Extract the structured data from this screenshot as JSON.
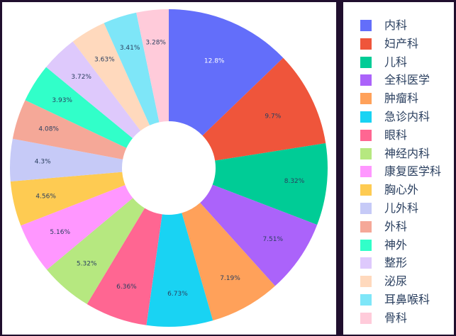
{
  "chart_data": {
    "type": "pie",
    "hole": true,
    "title": "",
    "legend_position": "right",
    "slices": [
      {
        "label": "内科",
        "value": 12.8,
        "text": "12.8%",
        "color": "#636efa",
        "text_color": "#ffffff"
      },
      {
        "label": "妇产科",
        "value": 9.7,
        "text": "9.7%",
        "color": "#ef553b",
        "text_color": "#2a3f5f"
      },
      {
        "label": "儿科",
        "value": 8.32,
        "text": "8.32%",
        "color": "#00cc96",
        "text_color": "#2a3f5f"
      },
      {
        "label": "全科医学",
        "value": 7.51,
        "text": "7.51%",
        "color": "#ab63fa",
        "text_color": "#2a3f5f"
      },
      {
        "label": "肿瘤科",
        "value": 7.19,
        "text": "7.19%",
        "color": "#ffa15a",
        "text_color": "#2a3f5f"
      },
      {
        "label": "急诊内科",
        "value": 6.73,
        "text": "6.73%",
        "color": "#19d3f3",
        "text_color": "#2a3f5f"
      },
      {
        "label": "眼科",
        "value": 6.36,
        "text": "6.36%",
        "color": "#ff6692",
        "text_color": "#2a3f5f"
      },
      {
        "label": "神经内科",
        "value": 5.32,
        "text": "5.32%",
        "color": "#b6e880",
        "text_color": "#2a3f5f"
      },
      {
        "label": "康复医学科",
        "value": 5.16,
        "text": "5.16%",
        "color": "#ff97ff",
        "text_color": "#2a3f5f"
      },
      {
        "label": "胸心外",
        "value": 4.56,
        "text": "4.56%",
        "color": "#fecb52",
        "text_color": "#2a3f5f"
      },
      {
        "label": "儿外科",
        "value": 4.3,
        "text": "4.3%",
        "color": "#c6caf7",
        "text_color": "#2a3f5f"
      },
      {
        "label": "外科",
        "value": 4.08,
        "text": "4.08%",
        "color": "#f5a898",
        "text_color": "#2a3f5f"
      },
      {
        "label": "神外",
        "value": 3.93,
        "text": "3.93%",
        "color": "#31ffc9",
        "text_color": "#2a3f5f"
      },
      {
        "label": "整形",
        "value": 3.72,
        "text": "3.72%",
        "color": "#dec9fc",
        "text_color": "#2a3f5f"
      },
      {
        "label": "泌尿",
        "value": 3.63,
        "text": "3.63%",
        "color": "#ffd9bd",
        "text_color": "#2a3f5f"
      },
      {
        "label": "耳鼻喉科",
        "value": 3.41,
        "text": "3.41%",
        "color": "#7ee6f8",
        "text_color": "#2a3f5f"
      },
      {
        "label": "骨科",
        "value": 3.28,
        "text": "3.28%",
        "color": "#ffcbda",
        "text_color": "#2a3f5f"
      }
    ]
  }
}
